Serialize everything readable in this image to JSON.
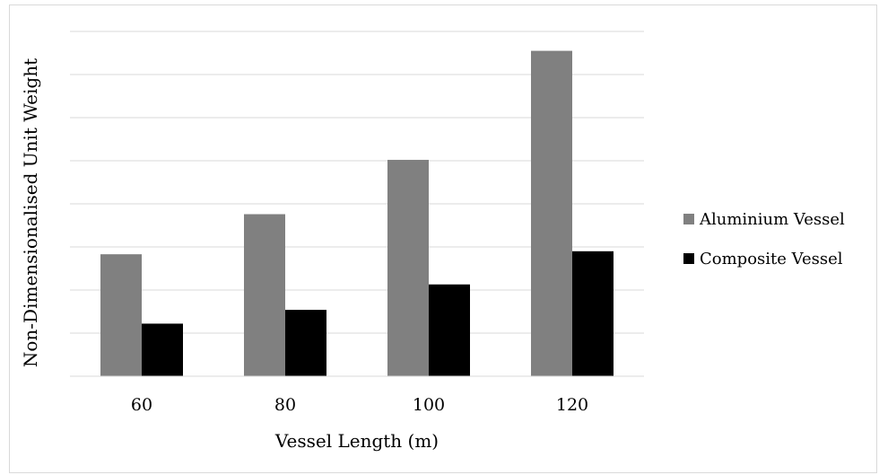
{
  "chart_data": {
    "type": "bar",
    "title": "",
    "xlabel": "Vessel Length (m)",
    "ylabel": "Non-Dimensionalised Unit Weight",
    "categories": [
      "60",
      "80",
      "100",
      "120"
    ],
    "ylim": [
      0,
      8
    ],
    "y_tick_labels_shown": false,
    "grid": true,
    "legend_position": "right",
    "series": [
      {
        "name": "Aluminium Vessel",
        "color": "#808080",
        "values": [
          2.83,
          3.76,
          5.02,
          7.55
        ]
      },
      {
        "name": "Composite Vessel",
        "color": "#000000",
        "values": [
          1.22,
          1.54,
          2.13,
          2.9
        ]
      }
    ]
  }
}
